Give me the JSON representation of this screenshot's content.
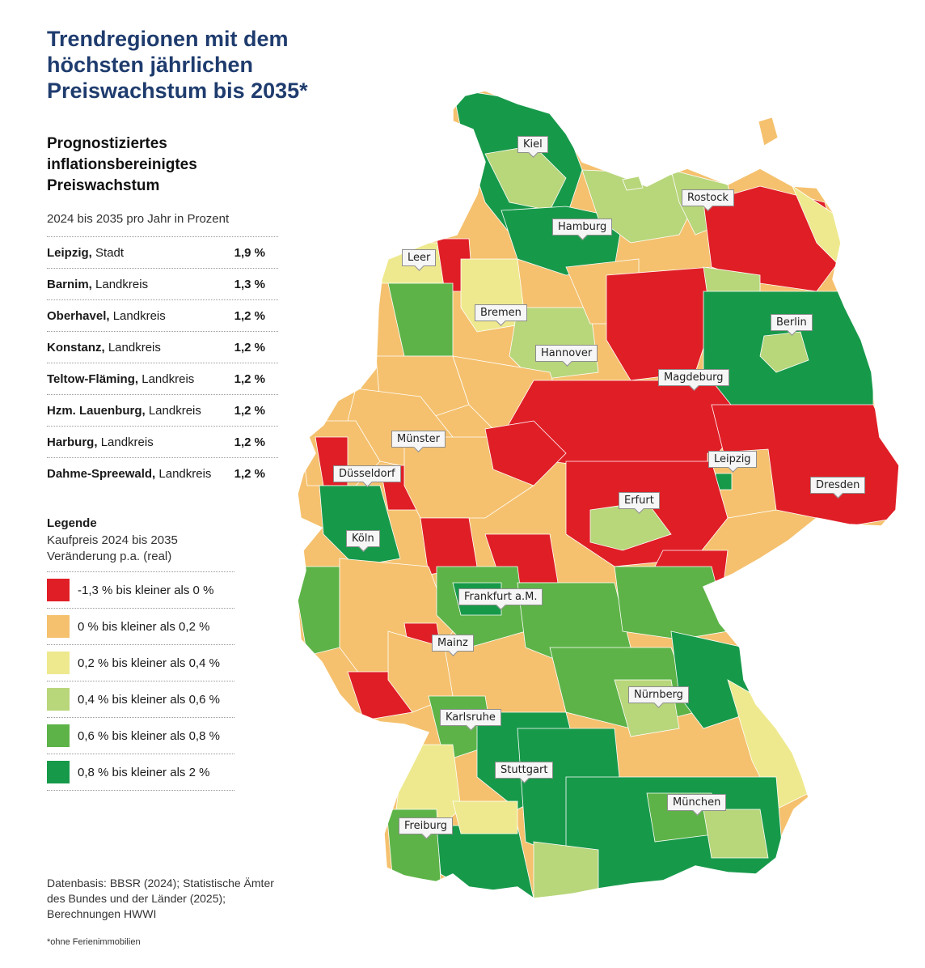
{
  "title": "Trendregionen mit dem höchsten jährlichen Preiswachstum bis 2035*",
  "subtitle": "Prognostiziertes inflationsbereinigtes Preiswachstum",
  "period": "2024 bis 2035 pro Jahr in Prozent",
  "ranking": [
    {
      "name": "Leipzig,",
      "type": "Stadt",
      "value": "1,9 %"
    },
    {
      "name": "Barnim,",
      "type": "Landkreis",
      "value": "1,3 %"
    },
    {
      "name": "Oberhavel,",
      "type": "Landkreis",
      "value": "1,2 %"
    },
    {
      "name": "Konstanz,",
      "type": "Landkreis",
      "value": "1,2 %"
    },
    {
      "name": "Teltow-Fläming,",
      "type": "Landkreis",
      "value": "1,2 %"
    },
    {
      "name": "Hzm. Lauenburg,",
      "type": "Landkreis",
      "value": "1,2 %"
    },
    {
      "name": "Harburg,",
      "type": "Landkreis",
      "value": "1,2 %"
    },
    {
      "name": "Dahme-Spreewald,",
      "type": "Landkreis",
      "value": "1,2 %"
    }
  ],
  "legend": {
    "title": "Legende",
    "desc": "Kaufpreis 2024 bis 2035 Veränderung p.a. (real)",
    "items": [
      {
        "label": "-1,3 % bis kleiner als 0 %",
        "color": "#e01e26"
      },
      {
        "label": "0 % bis kleiner als 0,2 %",
        "color": "#f5c16e"
      },
      {
        "label": "0,2 % bis kleiner als 0,4 %",
        "color": "#eee98e"
      },
      {
        "label": "0,4 % bis kleiner als 0,6 %",
        "color": "#b8d67a"
      },
      {
        "label": "0,6 % bis kleiner als 0,8 %",
        "color": "#5db347"
      },
      {
        "label": "0,8 % bis kleiner als 2 %",
        "color": "#17994a"
      }
    ]
  },
  "cities": [
    "Kiel",
    "Rostock",
    "Hamburg",
    "Leer",
    "Bremen",
    "Berlin",
    "Hannover",
    "Magdeburg",
    "Münster",
    "Leipzig",
    "Düsseldorf",
    "Dresden",
    "Erfurt",
    "Köln",
    "Frankfurt a.M.",
    "Mainz",
    "Nürnberg",
    "Karlsruhe",
    "Stuttgart",
    "München",
    "Freiburg"
  ],
  "source": "Datenbasis: BBSR (2024); Statistische Ämter des Bundes und der Länder (2025); Berechnungen HWWI",
  "footnote": "*ohne Ferienimmobilien"
}
